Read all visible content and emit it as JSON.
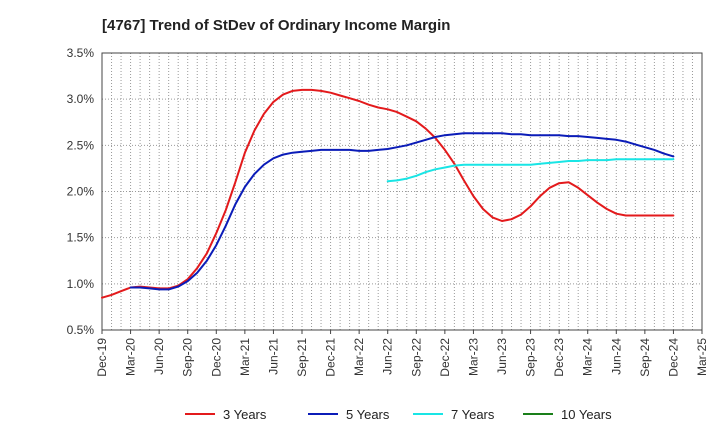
{
  "chart_data": {
    "type": "line",
    "title": "[4767]  Trend of StDev of Ordinary Income Margin",
    "xlabel": "",
    "ylabel": "",
    "x_ticks": [
      "Dec-19",
      "Mar-20",
      "Jun-20",
      "Sep-20",
      "Dec-20",
      "Mar-21",
      "Jun-21",
      "Sep-21",
      "Dec-21",
      "Mar-22",
      "Jun-22",
      "Sep-22",
      "Dec-22",
      "Mar-23",
      "Jun-23",
      "Sep-23",
      "Dec-23",
      "Mar-24",
      "Jun-24",
      "Sep-24",
      "Dec-24",
      "Mar-25"
    ],
    "y_ticks": [
      "0.5%",
      "1.0%",
      "1.5%",
      "2.0%",
      "2.5%",
      "3.0%",
      "3.5%"
    ],
    "ylim": [
      0.5,
      3.5
    ],
    "grid": true,
    "legend_position": "bottom",
    "series": [
      {
        "name": "3 Years",
        "color": "#e31a1c",
        "points": [
          [
            "Dec-19",
            0.85
          ],
          [
            "Jan-20",
            0.88
          ],
          [
            "Feb-20",
            0.92
          ],
          [
            "Mar-20",
            0.96
          ],
          [
            "Apr-20",
            0.97
          ],
          [
            "May-20",
            0.96
          ],
          [
            "Jun-20",
            0.95
          ],
          [
            "Jul-20",
            0.95
          ],
          [
            "Aug-20",
            0.98
          ],
          [
            "Sep-20",
            1.05
          ],
          [
            "Oct-20",
            1.17
          ],
          [
            "Nov-20",
            1.33
          ],
          [
            "Dec-20",
            1.55
          ],
          [
            "Jan-21",
            1.8
          ],
          [
            "Feb-21",
            2.1
          ],
          [
            "Mar-21",
            2.42
          ],
          [
            "Apr-21",
            2.66
          ],
          [
            "May-21",
            2.84
          ],
          [
            "Jun-21",
            2.97
          ],
          [
            "Jul-21",
            3.05
          ],
          [
            "Aug-21",
            3.09
          ],
          [
            "Sep-21",
            3.1
          ],
          [
            "Oct-21",
            3.1
          ],
          [
            "Nov-21",
            3.09
          ],
          [
            "Dec-21",
            3.07
          ],
          [
            "Jan-22",
            3.04
          ],
          [
            "Feb-22",
            3.01
          ],
          [
            "Mar-22",
            2.98
          ],
          [
            "Apr-22",
            2.94
          ],
          [
            "May-22",
            2.91
          ],
          [
            "Jun-22",
            2.89
          ],
          [
            "Jul-22",
            2.86
          ],
          [
            "Aug-22",
            2.81
          ],
          [
            "Sep-22",
            2.76
          ],
          [
            "Oct-22",
            2.68
          ],
          [
            "Nov-22",
            2.58
          ],
          [
            "Dec-22",
            2.45
          ],
          [
            "Jan-23",
            2.3
          ],
          [
            "Feb-23",
            2.12
          ],
          [
            "Mar-23",
            1.95
          ],
          [
            "Apr-23",
            1.81
          ],
          [
            "May-23",
            1.72
          ],
          [
            "Jun-23",
            1.68
          ],
          [
            "Jul-23",
            1.7
          ],
          [
            "Aug-23",
            1.75
          ],
          [
            "Sep-23",
            1.84
          ],
          [
            "Oct-23",
            1.95
          ],
          [
            "Nov-23",
            2.04
          ],
          [
            "Dec-23",
            2.09
          ],
          [
            "Jan-24",
            2.1
          ],
          [
            "Feb-24",
            2.04
          ],
          [
            "Mar-24",
            1.96
          ],
          [
            "Apr-24",
            1.88
          ],
          [
            "May-24",
            1.81
          ],
          [
            "Jun-24",
            1.76
          ],
          [
            "Jul-24",
            1.74
          ],
          [
            "Aug-24",
            1.74
          ],
          [
            "Sep-24",
            1.74
          ],
          [
            "Oct-24",
            1.74
          ],
          [
            "Nov-24",
            1.74
          ],
          [
            "Dec-24",
            1.74
          ]
        ]
      },
      {
        "name": "5 Years",
        "color": "#0b1cb8",
        "points": [
          [
            "Mar-20",
            0.96
          ],
          [
            "Apr-20",
            0.96
          ],
          [
            "May-20",
            0.95
          ],
          [
            "Jun-20",
            0.94
          ],
          [
            "Jul-20",
            0.94
          ],
          [
            "Aug-20",
            0.97
          ],
          [
            "Sep-20",
            1.03
          ],
          [
            "Oct-20",
            1.12
          ],
          [
            "Nov-20",
            1.25
          ],
          [
            "Dec-20",
            1.42
          ],
          [
            "Jan-21",
            1.63
          ],
          [
            "Feb-21",
            1.86
          ],
          [
            "Mar-21",
            2.05
          ],
          [
            "Apr-21",
            2.19
          ],
          [
            "May-21",
            2.29
          ],
          [
            "Jun-21",
            2.36
          ],
          [
            "Jul-21",
            2.4
          ],
          [
            "Aug-21",
            2.42
          ],
          [
            "Sep-21",
            2.43
          ],
          [
            "Oct-21",
            2.44
          ],
          [
            "Nov-21",
            2.45
          ],
          [
            "Dec-21",
            2.45
          ],
          [
            "Jan-22",
            2.45
          ],
          [
            "Feb-22",
            2.45
          ],
          [
            "Mar-22",
            2.44
          ],
          [
            "Apr-22",
            2.44
          ],
          [
            "May-22",
            2.45
          ],
          [
            "Jun-22",
            2.46
          ],
          [
            "Jul-22",
            2.48
          ],
          [
            "Aug-22",
            2.5
          ],
          [
            "Sep-22",
            2.53
          ],
          [
            "Oct-22",
            2.56
          ],
          [
            "Nov-22",
            2.59
          ],
          [
            "Dec-22",
            2.61
          ],
          [
            "Jan-23",
            2.62
          ],
          [
            "Feb-23",
            2.63
          ],
          [
            "Mar-23",
            2.63
          ],
          [
            "Apr-23",
            2.63
          ],
          [
            "May-23",
            2.63
          ],
          [
            "Jun-23",
            2.63
          ],
          [
            "Jul-23",
            2.62
          ],
          [
            "Aug-23",
            2.62
          ],
          [
            "Sep-23",
            2.61
          ],
          [
            "Oct-23",
            2.61
          ],
          [
            "Nov-23",
            2.61
          ],
          [
            "Dec-23",
            2.61
          ],
          [
            "Jan-24",
            2.6
          ],
          [
            "Feb-24",
            2.6
          ],
          [
            "Mar-24",
            2.59
          ],
          [
            "Apr-24",
            2.58
          ],
          [
            "May-24",
            2.57
          ],
          [
            "Jun-24",
            2.56
          ],
          [
            "Jul-24",
            2.54
          ],
          [
            "Aug-24",
            2.51
          ],
          [
            "Sep-24",
            2.48
          ],
          [
            "Oct-24",
            2.45
          ],
          [
            "Nov-24",
            2.41
          ],
          [
            "Dec-24",
            2.38
          ]
        ]
      },
      {
        "name": "7 Years",
        "color": "#19e5e5",
        "points": [
          [
            "Jun-22",
            2.11
          ],
          [
            "Jul-22",
            2.12
          ],
          [
            "Aug-22",
            2.14
          ],
          [
            "Sep-22",
            2.17
          ],
          [
            "Oct-22",
            2.21
          ],
          [
            "Nov-22",
            2.24
          ],
          [
            "Dec-22",
            2.26
          ],
          [
            "Jan-23",
            2.28
          ],
          [
            "Feb-23",
            2.29
          ],
          [
            "Mar-23",
            2.29
          ],
          [
            "Apr-23",
            2.29
          ],
          [
            "May-23",
            2.29
          ],
          [
            "Jun-23",
            2.29
          ],
          [
            "Jul-23",
            2.29
          ],
          [
            "Aug-23",
            2.29
          ],
          [
            "Sep-23",
            2.29
          ],
          [
            "Oct-23",
            2.3
          ],
          [
            "Nov-23",
            2.31
          ],
          [
            "Dec-23",
            2.32
          ],
          [
            "Jan-24",
            2.33
          ],
          [
            "Feb-24",
            2.33
          ],
          [
            "Mar-24",
            2.34
          ],
          [
            "Apr-24",
            2.34
          ],
          [
            "May-24",
            2.34
          ],
          [
            "Jun-24",
            2.35
          ],
          [
            "Jul-24",
            2.35
          ],
          [
            "Aug-24",
            2.35
          ],
          [
            "Sep-24",
            2.35
          ],
          [
            "Oct-24",
            2.35
          ],
          [
            "Nov-24",
            2.35
          ],
          [
            "Dec-24",
            2.35
          ]
        ]
      },
      {
        "name": "10 Years",
        "color": "#1a7f1a",
        "points": []
      }
    ]
  }
}
